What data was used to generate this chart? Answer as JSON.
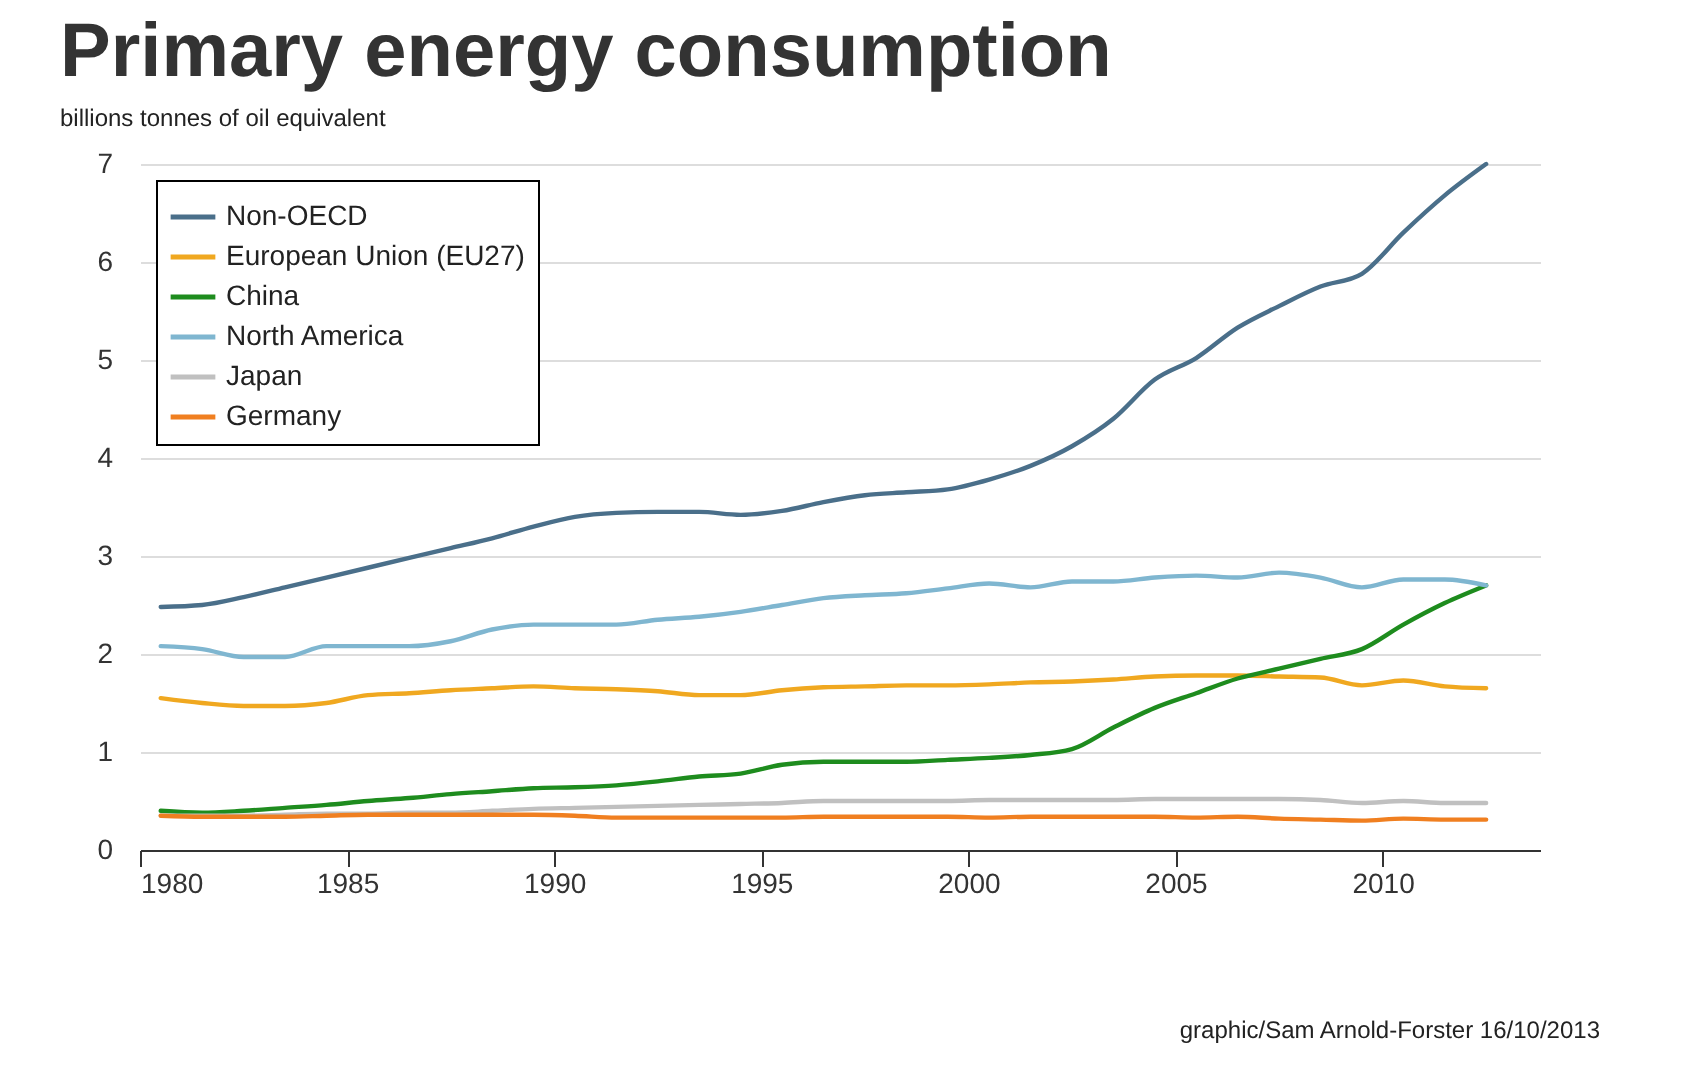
{
  "chart_data": {
    "type": "line",
    "title": "Primary energy consumption",
    "subtitle": "billions tonnes of oil equivalent",
    "x": [
      1980.5,
      1981.5,
      1982.5,
      1983.5,
      1984.5,
      1985.5,
      1986.5,
      1987.5,
      1988.5,
      1989.5,
      1990.5,
      1991.5,
      1992.5,
      1993.5,
      1994.5,
      1995.5,
      1996.5,
      1997.5,
      1998.5,
      1999.5,
      2000.5,
      2001.5,
      2002.5,
      2003.5,
      2004.5,
      2005.5,
      2006.5,
      2007.5,
      2008.5,
      2009.5,
      2010.5,
      2011.5,
      2012.5
    ],
    "series": [
      {
        "name": "Non-OECD",
        "color": "#4a6f8a",
        "values": [
          2.48,
          2.5,
          2.58,
          2.68,
          2.78,
          2.88,
          2.98,
          3.08,
          3.18,
          3.3,
          3.4,
          3.44,
          3.45,
          3.45,
          3.42,
          3.46,
          3.55,
          3.62,
          3.65,
          3.68,
          3.78,
          3.92,
          4.12,
          4.4,
          4.8,
          5.02,
          5.33,
          5.55,
          5.75,
          5.88,
          6.3,
          6.68,
          7.0
        ]
      },
      {
        "name": "European Union (EU27)",
        "color": "#f0a820",
        "values": [
          1.55,
          1.5,
          1.47,
          1.47,
          1.5,
          1.58,
          1.6,
          1.63,
          1.65,
          1.67,
          1.65,
          1.64,
          1.62,
          1.58,
          1.58,
          1.63,
          1.66,
          1.67,
          1.68,
          1.68,
          1.69,
          1.71,
          1.72,
          1.74,
          1.77,
          1.78,
          1.78,
          1.77,
          1.76,
          1.68,
          1.73,
          1.67,
          1.65
        ]
      },
      {
        "name": "China",
        "color": "#1e8c1e",
        "values": [
          0.4,
          0.38,
          0.4,
          0.43,
          0.46,
          0.5,
          0.53,
          0.57,
          0.6,
          0.63,
          0.64,
          0.66,
          0.7,
          0.75,
          0.78,
          0.87,
          0.9,
          0.9,
          0.9,
          0.92,
          0.94,
          0.97,
          1.03,
          1.25,
          1.45,
          1.6,
          1.75,
          1.85,
          1.95,
          2.05,
          2.3,
          2.52,
          2.7
        ]
      },
      {
        "name": "North America",
        "color": "#7fb6d0",
        "values": [
          2.08,
          2.05,
          1.97,
          1.97,
          2.08,
          2.08,
          2.08,
          2.13,
          2.25,
          2.3,
          2.3,
          2.3,
          2.35,
          2.38,
          2.43,
          2.5,
          2.57,
          2.6,
          2.62,
          2.67,
          2.72,
          2.68,
          2.74,
          2.74,
          2.78,
          2.8,
          2.78,
          2.83,
          2.78,
          2.68,
          2.76,
          2.76,
          2.7
        ]
      },
      {
        "name": "Japan",
        "color": "#c0c0c0",
        "values": [
          0.35,
          0.35,
          0.35,
          0.36,
          0.37,
          0.37,
          0.38,
          0.38,
          0.4,
          0.42,
          0.43,
          0.44,
          0.45,
          0.46,
          0.47,
          0.48,
          0.5,
          0.5,
          0.5,
          0.5,
          0.51,
          0.51,
          0.51,
          0.51,
          0.52,
          0.52,
          0.52,
          0.52,
          0.51,
          0.48,
          0.5,
          0.48,
          0.48
        ]
      },
      {
        "name": "Germany",
        "color": "#f07f20",
        "values": [
          0.35,
          0.34,
          0.34,
          0.34,
          0.35,
          0.36,
          0.36,
          0.36,
          0.36,
          0.36,
          0.35,
          0.33,
          0.33,
          0.33,
          0.33,
          0.33,
          0.34,
          0.34,
          0.34,
          0.34,
          0.33,
          0.34,
          0.34,
          0.34,
          0.34,
          0.33,
          0.34,
          0.32,
          0.31,
          0.3,
          0.32,
          0.31,
          0.31
        ]
      }
    ],
    "xlim": [
      1980,
      2013.8
    ],
    "xticks": [
      1980,
      1985,
      1990,
      1995,
      2000,
      2005,
      2010
    ],
    "ylim": [
      0,
      7
    ],
    "yticks": [
      0,
      1,
      2,
      3,
      4,
      5,
      6,
      7
    ],
    "grid": "y",
    "legend": "top left",
    "marker": "none",
    "line_style": "solid",
    "annotations": [
      "graphic/Sam Arnold-Forster 16/10/2013"
    ]
  }
}
